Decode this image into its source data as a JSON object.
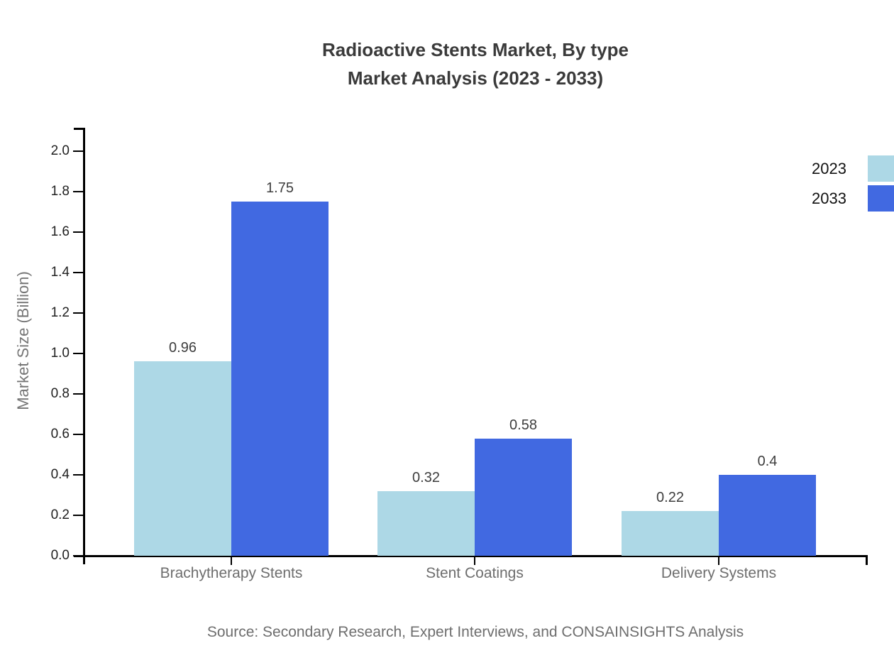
{
  "title": {
    "line1": "Radioactive Stents Market, By type",
    "line2": "Market Analysis (2023 - 2033)"
  },
  "source": "Source: Secondary Research, Expert Interviews, and CONSAINSIGHTS Analysis",
  "chart_data": {
    "type": "bar",
    "title": "Radioactive Stents Market, By type Market Analysis (2023 - 2033)",
    "categories": [
      "Brachytherapy Stents",
      "Stent Coatings",
      "Delivery Systems"
    ],
    "series": [
      {
        "name": "2023",
        "color": "#add8e6",
        "values": [
          0.96,
          0.32,
          0.22
        ],
        "labels": [
          "0.96",
          "0.32",
          "0.22"
        ]
      },
      {
        "name": "2033",
        "color": "#4169e1",
        "values": [
          1.75,
          0.58,
          0.4
        ],
        "labels": [
          "1.75",
          "0.58",
          "0.4"
        ]
      }
    ],
    "xlabel": "",
    "ylabel": "Market Size (Billion)",
    "ylim": [
      0.0,
      2.0
    ],
    "yticks": [
      "0.0",
      "0.2",
      "0.4",
      "0.6",
      "0.8",
      "1.0",
      "1.2",
      "1.4",
      "1.6",
      "1.8",
      "2.0"
    ],
    "grid": false,
    "legend_position": "top-right",
    "axis_color": "#000000",
    "text_colors": {
      "title": "#3a3a3a",
      "tick_labels": "#212121",
      "category_labels": "#6e6e6e",
      "value_labels": "#3d3d3d",
      "source": "#6e6e6e"
    }
  }
}
